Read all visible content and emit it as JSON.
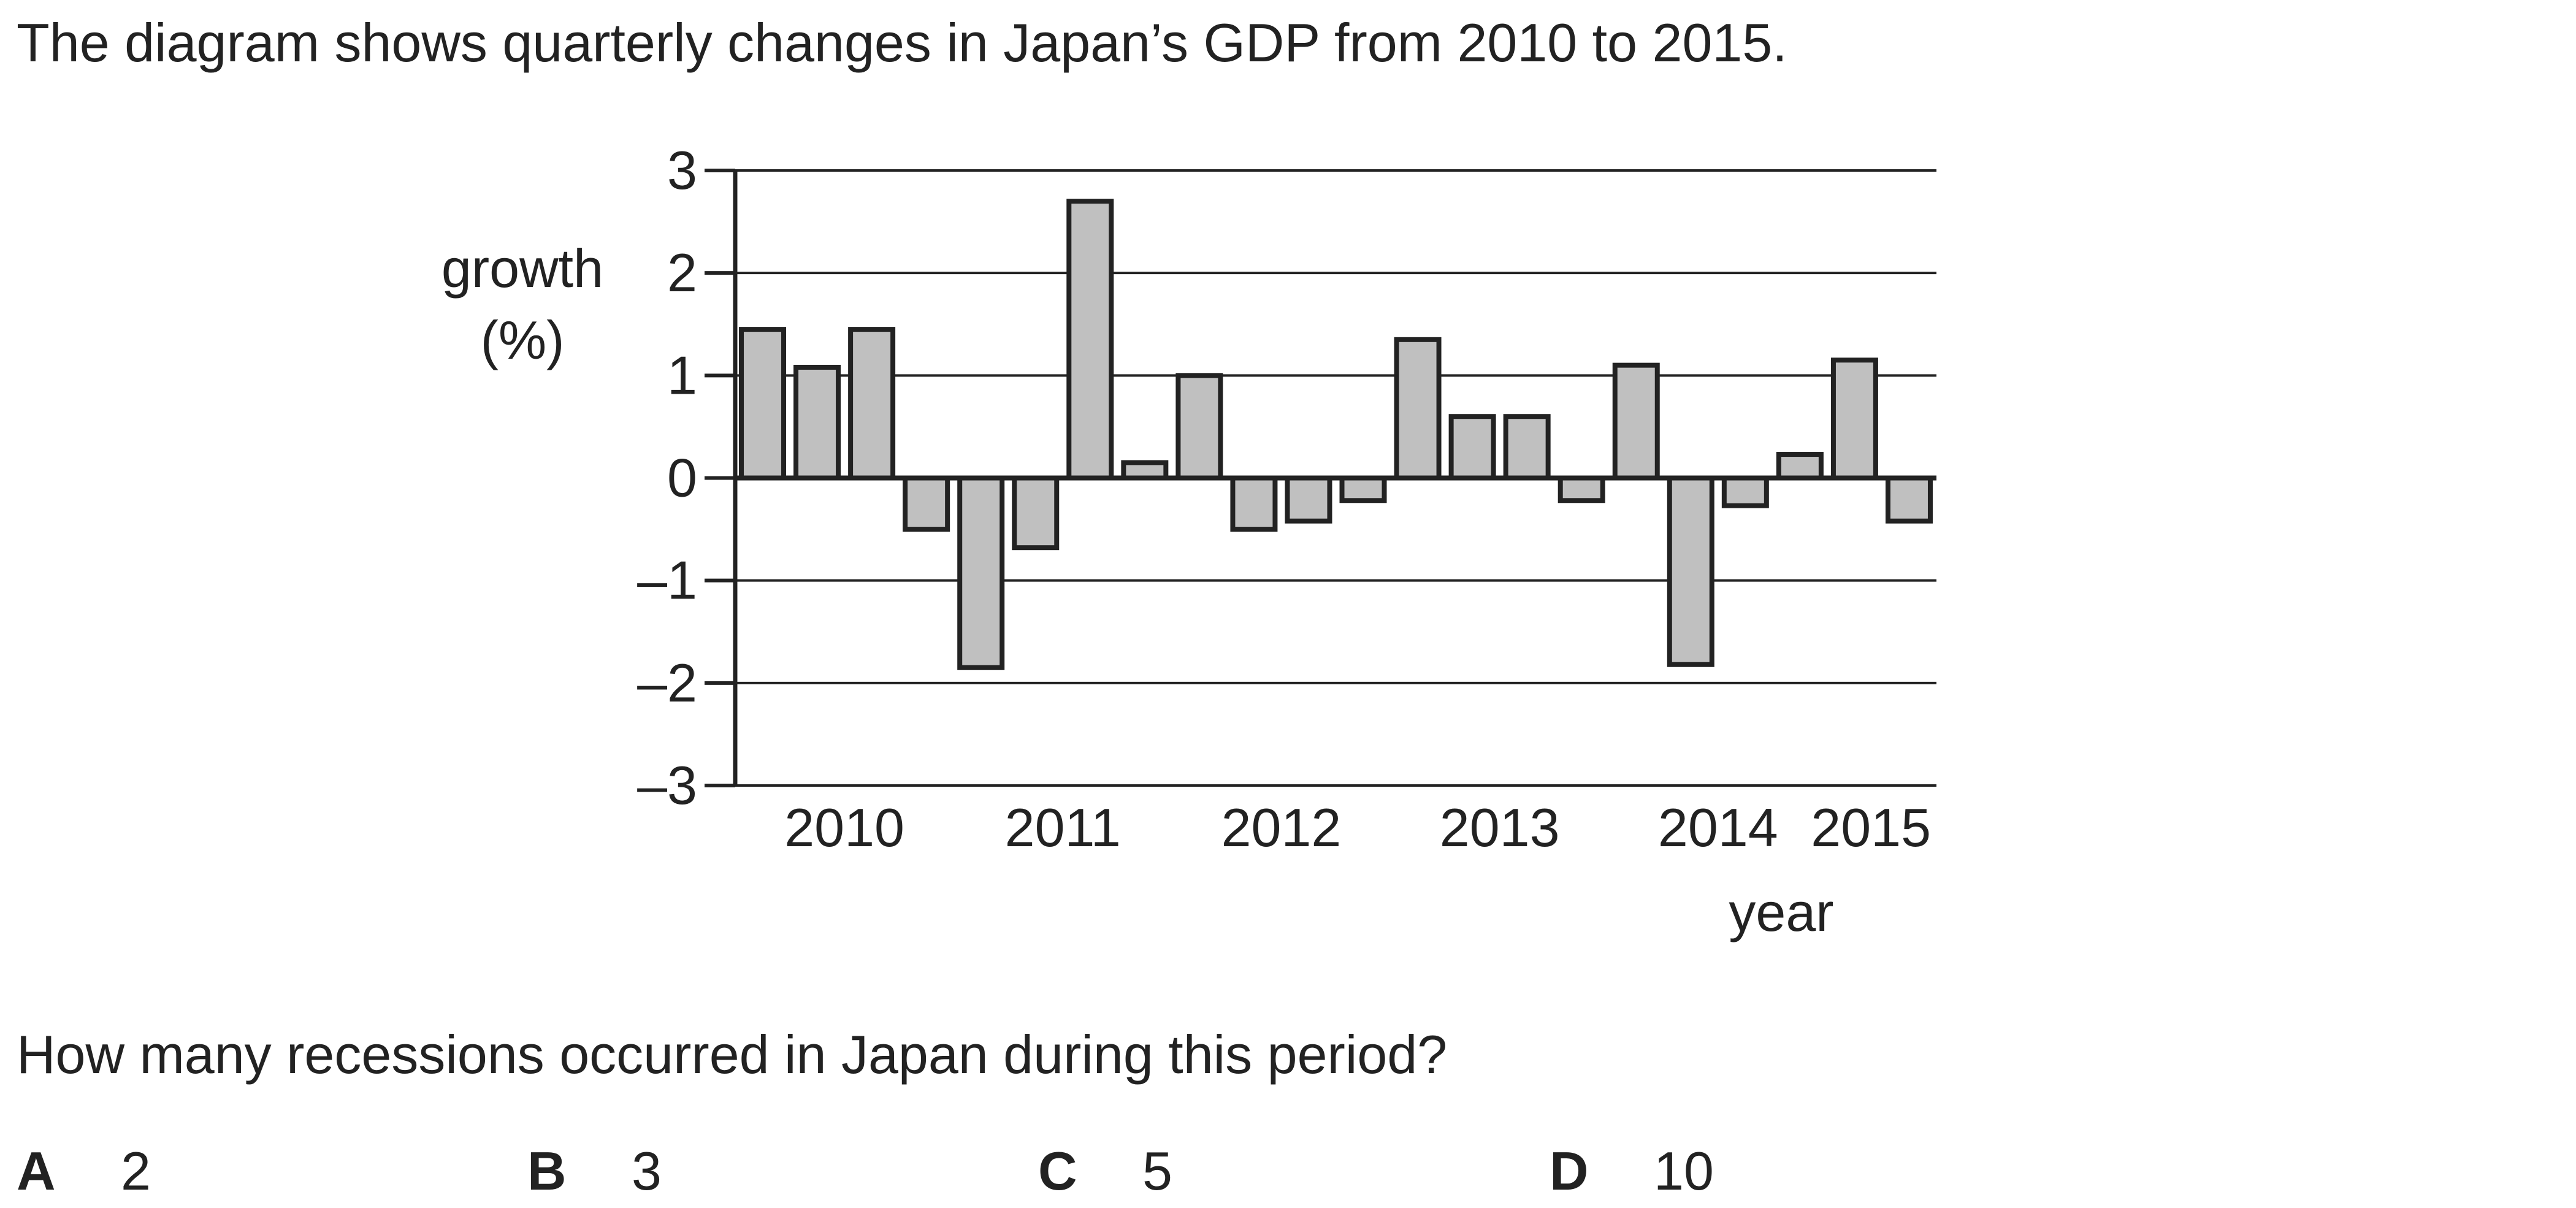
{
  "intro_text": "The diagram shows quarterly changes in Japan’s GDP from 2010 to 2015.",
  "question_text": "How many recessions occurred in Japan during this period?",
  "options": [
    {
      "letter": "A",
      "value": "2"
    },
    {
      "letter": "B",
      "value": "3"
    },
    {
      "letter": "C",
      "value": "5"
    },
    {
      "letter": "D",
      "value": "10"
    }
  ],
  "chart_data": {
    "type": "bar",
    "ylabel_lines": [
      "growth",
      "(%)"
    ],
    "xlabel": "year",
    "ylim": [
      -3,
      3
    ],
    "yticks": [
      3,
      2,
      1,
      0,
      -1,
      -2,
      -3
    ],
    "ytick_labels": [
      "3",
      "2",
      "1",
      "0",
      "–1",
      "–2",
      "–3"
    ],
    "year_labels": [
      "2010",
      "2011",
      "2012",
      "2013",
      "2014",
      "2015"
    ],
    "grid": true,
    "bar_fill": "#c0c0c0",
    "bar_stroke": "#222222",
    "values": [
      1.45,
      1.08,
      1.45,
      -0.5,
      -1.85,
      -0.68,
      2.7,
      0.15,
      1.0,
      -0.5,
      -0.42,
      -0.22,
      1.35,
      0.6,
      0.6,
      -0.22,
      1.1,
      -1.82,
      -0.27,
      0.23,
      1.15,
      -0.42
    ]
  }
}
